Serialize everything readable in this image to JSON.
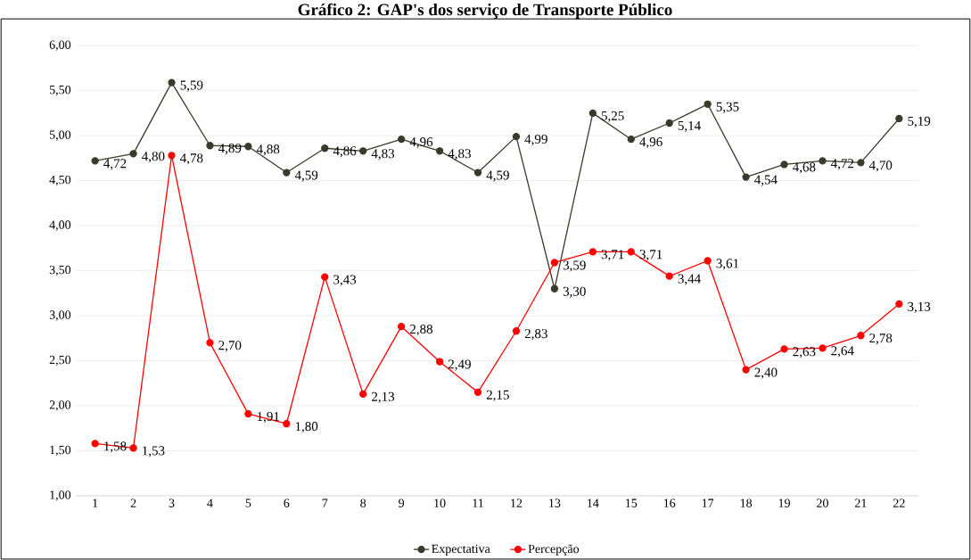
{
  "chart_data": {
    "type": "line",
    "title": "Gráfico 2: GAP's dos serviço de Transporte Público",
    "categories": [
      "1",
      "2",
      "3",
      "4",
      "5",
      "6",
      "7",
      "8",
      "9",
      "10",
      "11",
      "12",
      "13",
      "14",
      "15",
      "16",
      "17",
      "18",
      "19",
      "20",
      "21",
      "22"
    ],
    "series": [
      {
        "name": "Expectativa",
        "color": "#3a3a2a",
        "values": [
          4.72,
          4.8,
          5.59,
          4.89,
          4.88,
          4.59,
          4.86,
          4.83,
          4.96,
          4.83,
          4.59,
          4.99,
          3.3,
          5.25,
          4.96,
          5.14,
          5.35,
          4.54,
          4.68,
          4.72,
          4.7,
          5.19
        ],
        "value_labels": [
          "4,72",
          "4,80",
          "5,59",
          "4,89",
          "4,88",
          "4,59",
          "4,86",
          "4,83",
          "4,96",
          "4,83",
          "4,59",
          "4,99",
          "3,30",
          "5,25",
          "4,96",
          "5,14",
          "5,35",
          "4,54",
          "4,68",
          "4,72",
          "4,70",
          "5,19"
        ]
      },
      {
        "name": "Percepção",
        "color": "#ff0000",
        "values": [
          1.58,
          1.53,
          4.78,
          2.7,
          1.91,
          1.8,
          3.43,
          2.13,
          2.88,
          2.49,
          2.15,
          2.83,
          3.59,
          3.71,
          3.71,
          3.44,
          3.61,
          2.4,
          2.63,
          2.64,
          2.78,
          3.13
        ],
        "value_labels": [
          "1,58",
          "1,53",
          "4,78",
          "2,70",
          "1,91",
          "1,80",
          "3,43",
          "2,13",
          "2,88",
          "2,49",
          "2,15",
          "2,83",
          "3,59",
          "3,71",
          "3,71",
          "3,44",
          "3,61",
          "2,40",
          "2,63",
          "2,64",
          "2,78",
          "3,13"
        ]
      }
    ],
    "ylim": [
      1,
      6
    ],
    "yticks": [
      {
        "value": 1,
        "label": "1,00"
      },
      {
        "value": 1.5,
        "label": "1,50"
      },
      {
        "value": 2,
        "label": "2,00"
      },
      {
        "value": 2.5,
        "label": "2,50"
      },
      {
        "value": 3,
        "label": "3,00"
      },
      {
        "value": 3.5,
        "label": "3,50"
      },
      {
        "value": 4,
        "label": "4,00"
      },
      {
        "value": 4.5,
        "label": "4,50"
      },
      {
        "value": 5,
        "label": "5,00"
      },
      {
        "value": 5.5,
        "label": "5,50"
      },
      {
        "value": 6,
        "label": "6,00"
      }
    ],
    "grid": "y",
    "legend": "bottom",
    "marker": "circle",
    "line_style": "solid"
  }
}
